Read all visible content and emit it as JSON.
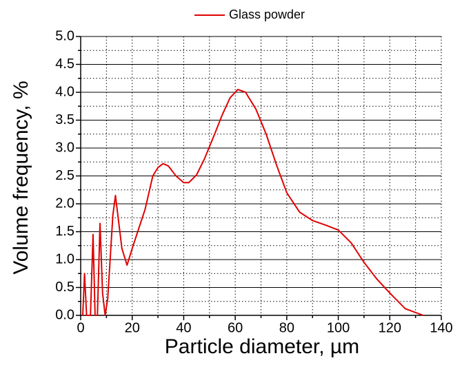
{
  "chart_data": {
    "type": "line",
    "xlabel": "Particle diameter, µm",
    "ylabel": "Volume frequency, %",
    "series": [
      {
        "name": "Glass powder",
        "color": "#e00000",
        "x": [
          0.8,
          1.5,
          2.3,
          3.8,
          4.8,
          5.6,
          6.5,
          7.5,
          8.5,
          9.5,
          10.5,
          12.5,
          13.5,
          16,
          18,
          20,
          25,
          28,
          30,
          32,
          34,
          37,
          40,
          42,
          45,
          48,
          52,
          55,
          58,
          61,
          64,
          68,
          72,
          76,
          80,
          85,
          90,
          95,
          100,
          105,
          110,
          115,
          120,
          126,
          133
        ],
        "values": [
          0,
          0.75,
          0,
          0,
          1.45,
          0,
          0,
          1.65,
          0.4,
          0,
          0.3,
          1.8,
          2.15,
          1.2,
          0.9,
          1.2,
          1.9,
          2.5,
          2.65,
          2.72,
          2.68,
          2.5,
          2.38,
          2.38,
          2.52,
          2.8,
          3.25,
          3.6,
          3.9,
          4.05,
          4.0,
          3.7,
          3.25,
          2.7,
          2.2,
          1.85,
          1.7,
          1.62,
          1.53,
          1.3,
          0.95,
          0.65,
          0.4,
          0.12,
          0
        ]
      }
    ],
    "xlim": [
      0,
      140
    ],
    "ylim": [
      0,
      5
    ],
    "xticks": [
      0,
      20,
      40,
      60,
      80,
      100,
      120,
      140
    ],
    "yticks": [
      {
        "value": 0,
        "label": "0.0"
      },
      0.5,
      {
        "value": 1,
        "label": "1.0"
      },
      1.5,
      {
        "value": 2,
        "label": "2.0"
      },
      2.5,
      {
        "value": 3,
        "label": "3.0"
      },
      3.5,
      {
        "value": 4,
        "label": "4.0"
      },
      4.5,
      {
        "value": 5,
        "label": "5.0"
      }
    ],
    "xminorticks": [
      10,
      30,
      50,
      70,
      90,
      110,
      130
    ],
    "yminorticks": [
      0.25,
      0.75,
      1.25,
      1.75,
      2.25,
      2.75,
      3.25,
      3.75,
      4.25,
      4.75
    ],
    "grid": true,
    "legend": "top"
  }
}
